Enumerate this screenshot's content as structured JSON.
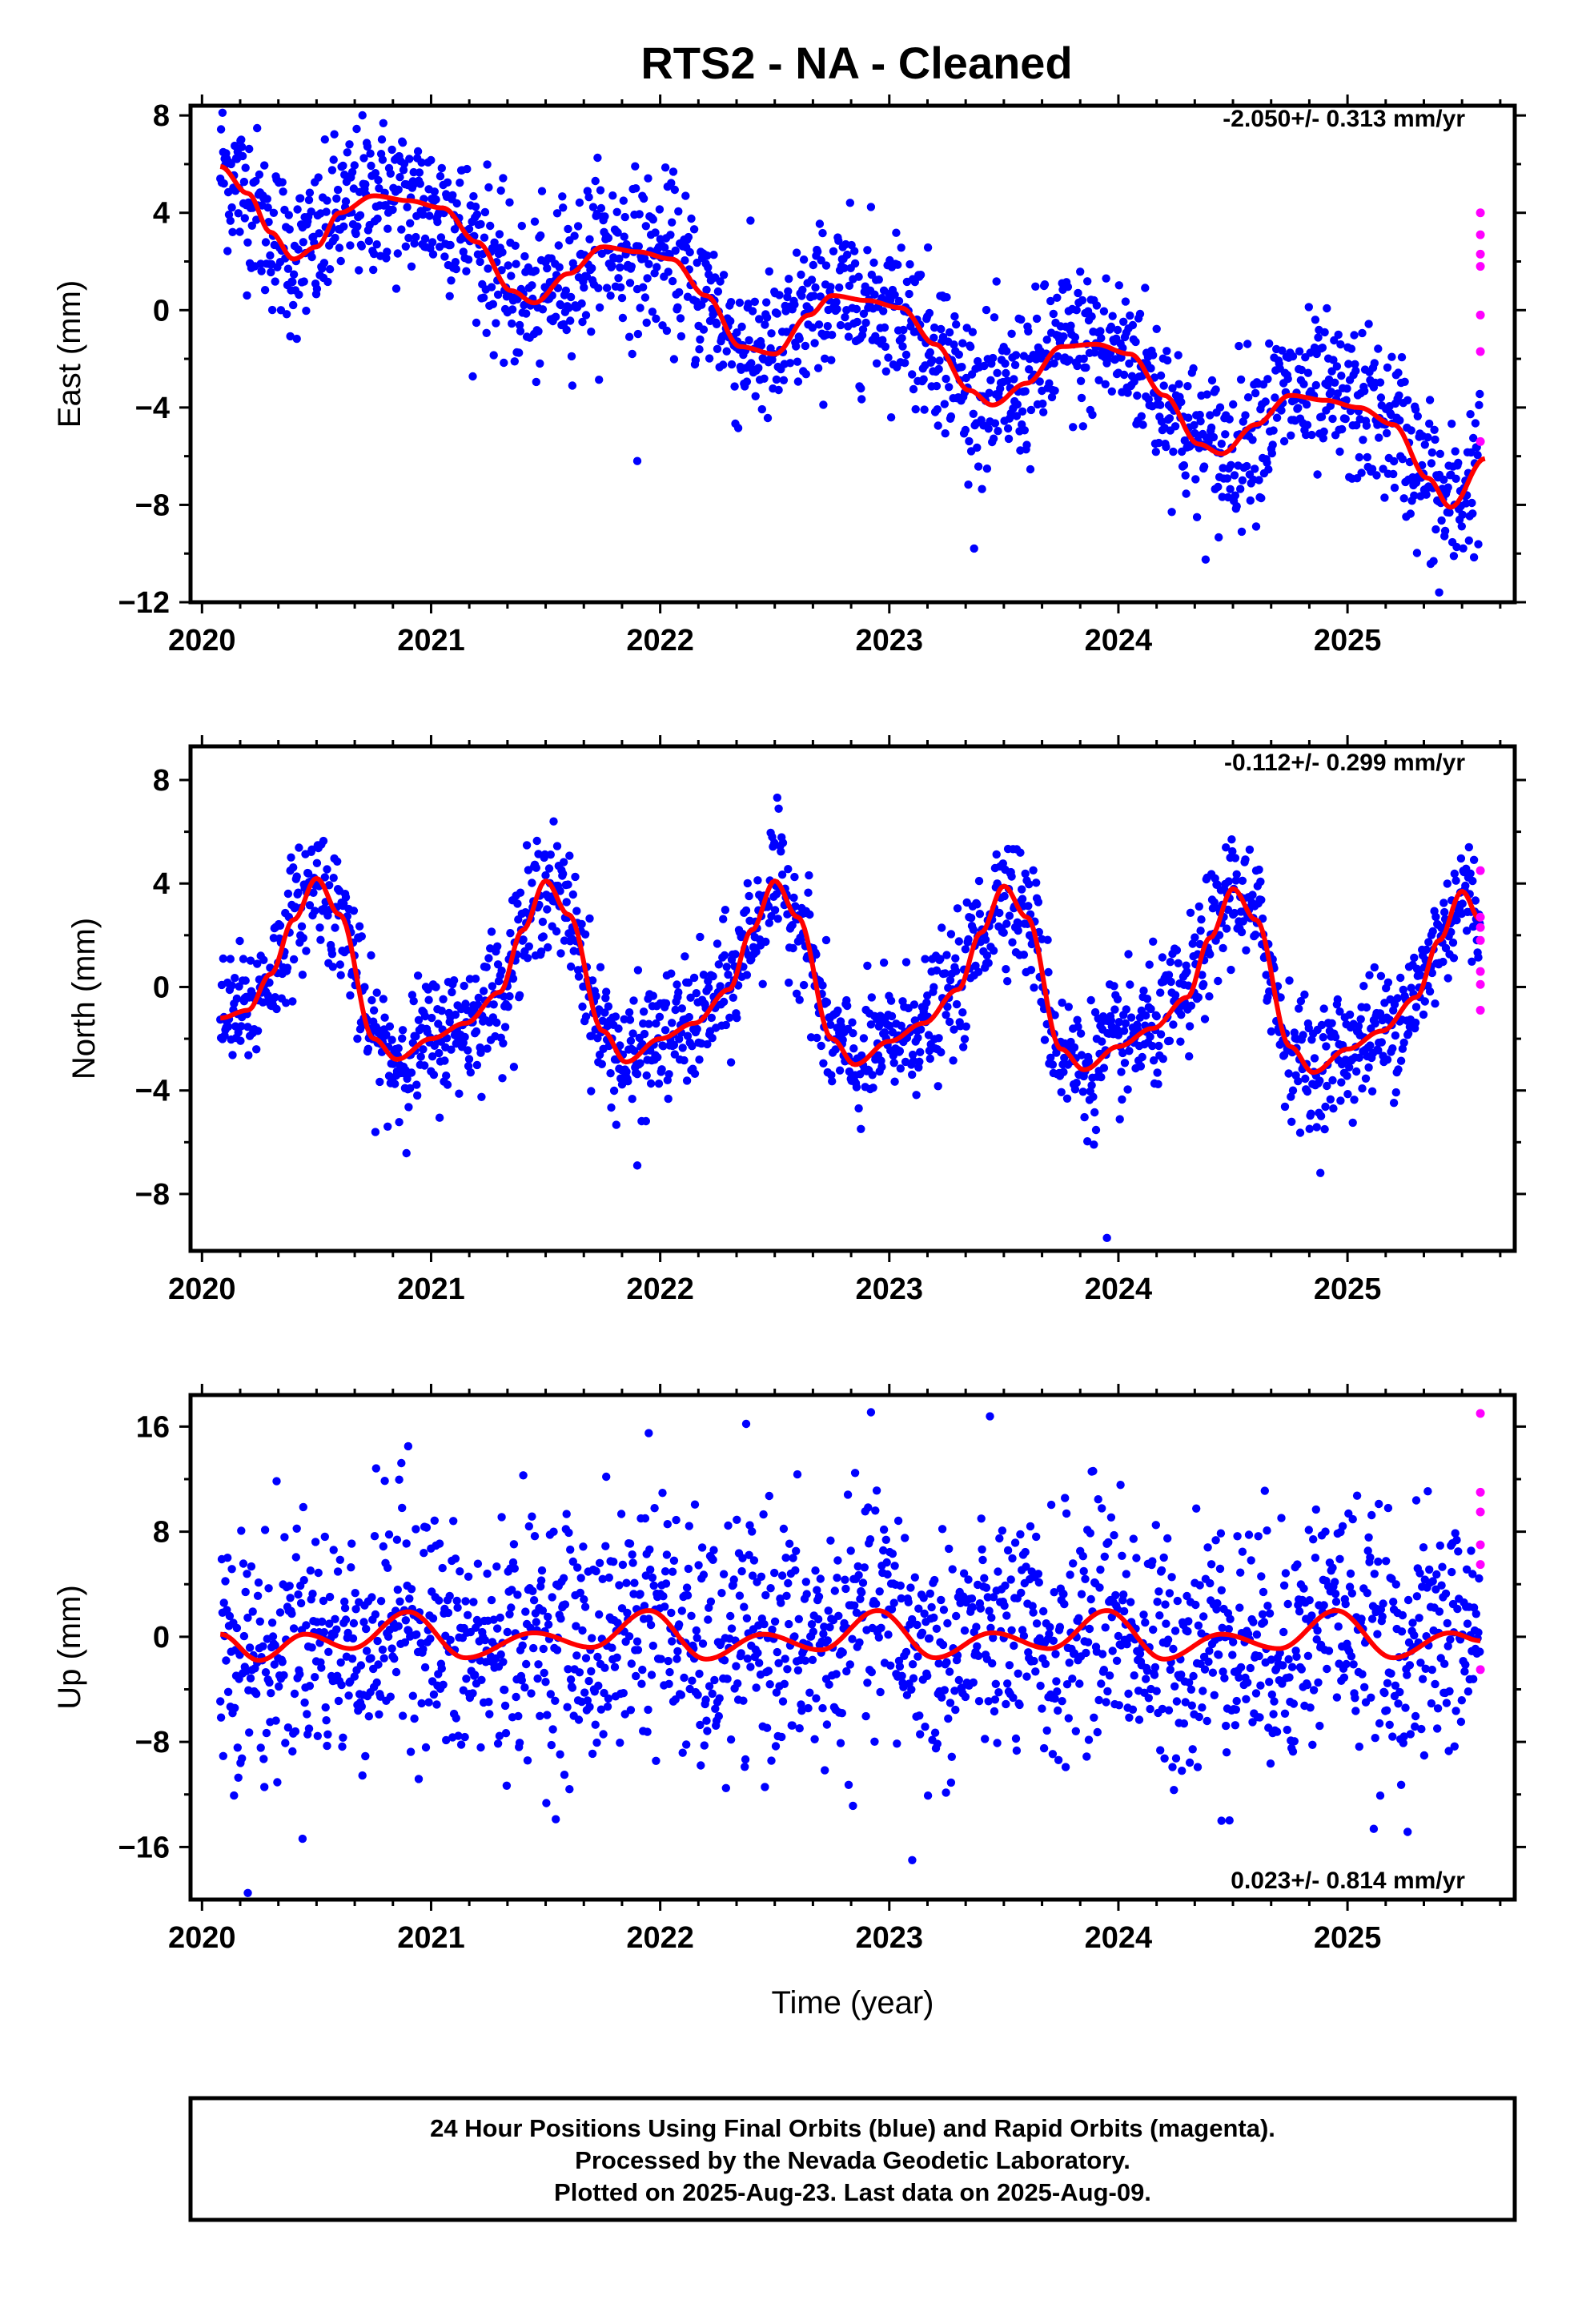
{
  "title": "RTS2  - NA - Cleaned",
  "colors": {
    "final_orbits": "#0000ff",
    "rapid_orbits": "#ff00ff",
    "model": "#ff0000"
  },
  "footer": {
    "line1": "24 Hour Positions Using Final Orbits (blue) and Rapid Orbits (magenta).",
    "line2": "Processed by the Nevada Geodetic Laboratory.",
    "line3": "Plotted on 2025-Aug-23. Last data on 2025-Aug-09."
  },
  "chart_data": [
    {
      "type": "scatter",
      "ylabel": "East (mm)",
      "xlabel": "",
      "rate_text": "-2.050+/- 0.313 mm/yr",
      "xlim": [
        2019.95,
        2025.73
      ],
      "ylim": [
        -12,
        8.4
      ],
      "xticks": [
        2020,
        2021,
        2022,
        2023,
        2024,
        2025
      ],
      "yticks": [
        8,
        4,
        0,
        -4,
        -8,
        -12
      ],
      "grid": false,
      "model_x": [
        2020.08,
        2020.2,
        2020.3,
        2020.4,
        2020.5,
        2020.6,
        2020.75,
        2020.9,
        2021.05,
        2021.2,
        2021.35,
        2021.45,
        2021.6,
        2021.75,
        2021.9,
        2022.05,
        2022.2,
        2022.35,
        2022.5,
        2022.65,
        2022.75,
        2022.9,
        2023.05,
        2023.2,
        2023.35,
        2023.45,
        2023.6,
        2023.75,
        2023.9,
        2024.05,
        2024.2,
        2024.35,
        2024.45,
        2024.6,
        2024.75,
        2024.9,
        2025.05,
        2025.2,
        2025.35,
        2025.45,
        2025.6
      ],
      "model_y": [
        5.9,
        4.8,
        3.2,
        2.1,
        2.6,
        4.0,
        4.7,
        4.5,
        4.2,
        2.8,
        0.8,
        0.3,
        1.5,
        2.6,
        2.4,
        2.1,
        0.6,
        -1.5,
        -1.8,
        -0.2,
        0.6,
        0.4,
        0.1,
        -1.4,
        -3.3,
        -3.9,
        -3.0,
        -1.5,
        -1.4,
        -1.8,
        -3.5,
        -5.5,
        -5.9,
        -4.7,
        -3.5,
        -3.7,
        -4.0,
        -4.7,
        -6.9,
        -8.1,
        -6.1
      ],
      "rapid_x": [
        2025.58,
        2025.58,
        2025.58,
        2025.58,
        2025.58,
        2025.58,
        2025.58
      ],
      "rapid_y": [
        4.0,
        3.1,
        2.3,
        1.8,
        -0.2,
        -1.7,
        -5.4
      ],
      "final_trend": {
        "x_start": 2020.08,
        "x_end": 2025.58,
        "y_start": 5.5,
        "y_end": -6.0,
        "scatter_mm": 1.6,
        "annual_amp_mm": 1.9
      },
      "outliers": [
        {
          "x": 2021.9,
          "y": -6.2
        },
        {
          "x": 2025.4,
          "y": -11.6
        }
      ]
    },
    {
      "type": "scatter",
      "ylabel": "North (mm)",
      "xlabel": "",
      "rate_text": "-0.112+/- 0.299 mm/yr",
      "xlim": [
        2019.95,
        2025.73
      ],
      "ylim": [
        -10.2,
        9.3
      ],
      "xticks": [
        2020,
        2021,
        2022,
        2023,
        2024,
        2025
      ],
      "yticks": [
        8,
        4,
        0,
        -4,
        -8
      ],
      "grid": false,
      "model_x": [
        2020.08,
        2020.2,
        2020.3,
        2020.4,
        2020.5,
        2020.6,
        2020.75,
        2020.85,
        2021.0,
        2021.15,
        2021.3,
        2021.4,
        2021.5,
        2021.6,
        2021.75,
        2021.85,
        2022.0,
        2022.15,
        2022.3,
        2022.4,
        2022.5,
        2022.6,
        2022.75,
        2022.85,
        2023.0,
        2023.15,
        2023.3,
        2023.4,
        2023.5,
        2023.6,
        2023.75,
        2023.85,
        2024.0,
        2024.15,
        2024.3,
        2024.4,
        2024.5,
        2024.6,
        2024.75,
        2024.85,
        2025.0,
        2025.15,
        2025.3,
        2025.4,
        2025.5,
        2025.58
      ],
      "model_y": [
        -1.2,
        -0.9,
        0.5,
        2.6,
        4.2,
        2.8,
        -2.0,
        -2.8,
        -2.0,
        -1.4,
        -0.2,
        2.2,
        4.1,
        2.8,
        -1.7,
        -2.9,
        -2.0,
        -1.4,
        -0.1,
        2.2,
        4.1,
        2.7,
        -2.0,
        -3.0,
        -2.1,
        -1.4,
        -0.1,
        2.1,
        3.9,
        2.7,
        -2.4,
        -3.2,
        -2.3,
        -1.6,
        -0.4,
        1.9,
        3.8,
        2.6,
        -2.3,
        -3.3,
        -2.4,
        -1.7,
        -0.4,
        1.8,
        3.7,
        2.6
      ],
      "rapid_x": [
        2025.58,
        2025.58,
        2025.58,
        2025.58,
        2025.58,
        2025.58,
        2025.58
      ],
      "rapid_y": [
        4.5,
        2.7,
        2.3,
        1.8,
        0.6,
        0.1,
        -0.9
      ],
      "final_trend": {
        "x_start": 2020.08,
        "x_end": 2025.58,
        "y_start": 0.0,
        "y_end": -0.6,
        "scatter_mm": 1.2,
        "annual_amp_mm": 3.6
      },
      "outliers": [
        {
          "x": 2021.9,
          "y": -6.9
        },
        {
          "x": 2023.95,
          "y": -9.7
        }
      ]
    },
    {
      "type": "scatter",
      "ylabel": "Up (mm)",
      "xlabel": "Time (year)",
      "rate_text": "0.023+/- 0.814 mm/yr",
      "xlim": [
        2019.95,
        2025.73
      ],
      "ylim": [
        -20,
        18.4
      ],
      "xticks": [
        2020,
        2021,
        2022,
        2023,
        2024,
        2025
      ],
      "yticks": [
        16,
        8,
        0,
        -8,
        -16
      ],
      "grid": false,
      "model_x": [
        2020.08,
        2020.25,
        2020.45,
        2020.65,
        2020.9,
        2021.15,
        2021.45,
        2021.7,
        2021.95,
        2022.2,
        2022.45,
        2022.7,
        2022.95,
        2023.2,
        2023.45,
        2023.7,
        2023.95,
        2024.2,
        2024.45,
        2024.7,
        2024.95,
        2025.2,
        2025.45,
        2025.58
      ],
      "model_y": [
        0.2,
        -1.8,
        0.2,
        -0.9,
        1.9,
        -1.6,
        0.3,
        -0.8,
        2.0,
        -1.7,
        0.2,
        -1.0,
        2.0,
        -1.6,
        0.3,
        -0.9,
        2.0,
        -1.7,
        0.2,
        -0.9,
        2.0,
        -1.6,
        0.3,
        -0.3
      ],
      "rapid_x": [
        2025.58,
        2025.58,
        2025.58,
        2025.58,
        2025.58,
        2025.58
      ],
      "rapid_y": [
        17.0,
        11.0,
        9.5,
        7.0,
        5.5,
        -2.5
      ],
      "final_trend": {
        "x_start": 2020.08,
        "x_end": 2025.58,
        "y_start": 0.0,
        "y_end": 0.1,
        "scatter_mm": 4.6,
        "annual_amp_mm": 1.2
      },
      "outliers": [
        {
          "x": 2020.2,
          "y": -19.5
        },
        {
          "x": 2020.9,
          "y": 14.5
        },
        {
          "x": 2021.95,
          "y": 15.5
        },
        {
          "x": 2023.1,
          "y": -17.0
        },
        {
          "x": 2024.45,
          "y": -14.0
        }
      ]
    }
  ]
}
